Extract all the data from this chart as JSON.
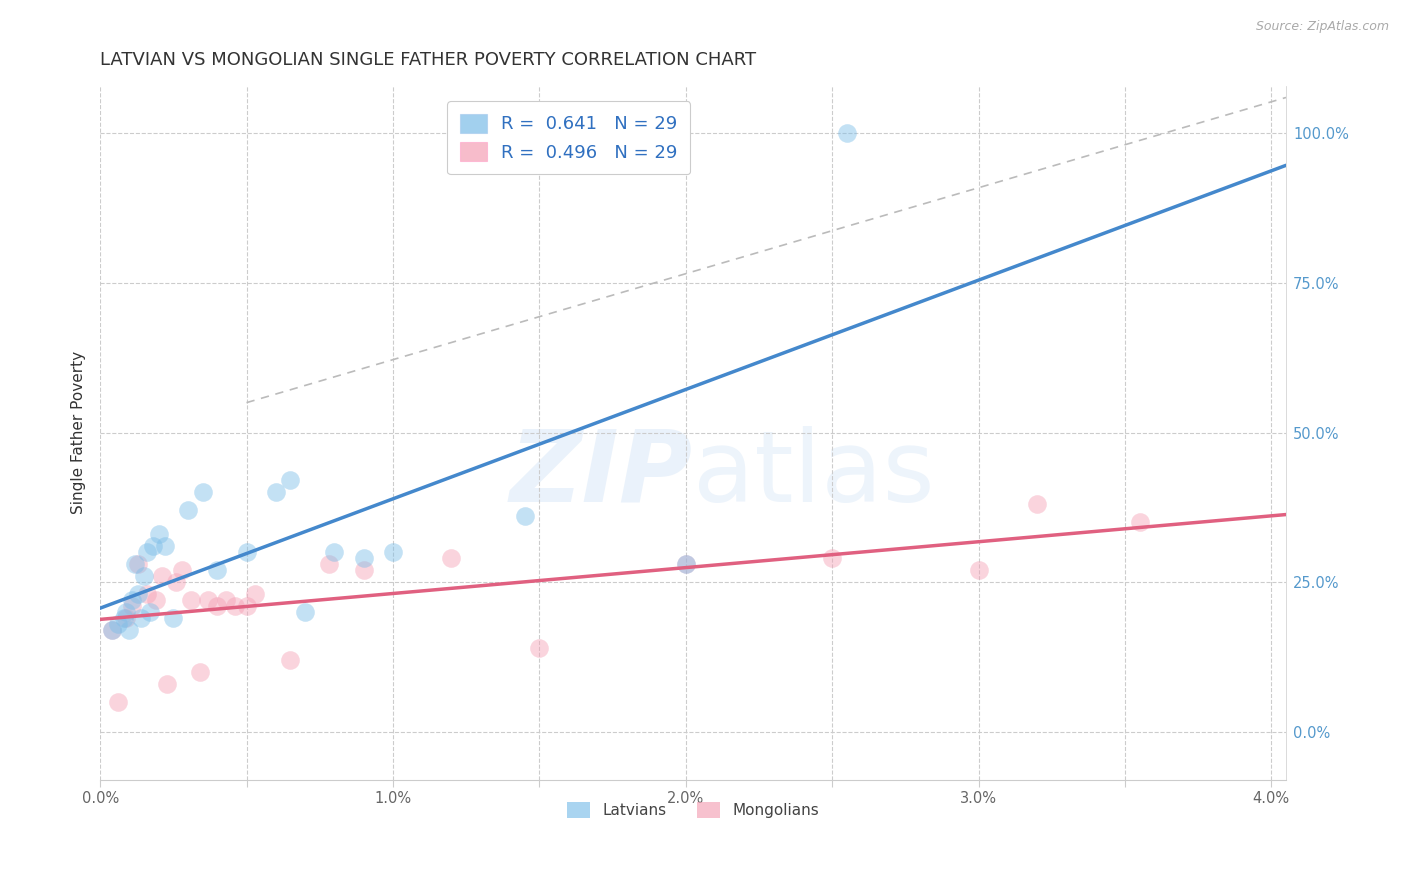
{
  "title": "LATVIAN VS MONGOLIAN SINGLE FATHER POVERTY CORRELATION CHART",
  "source": "Source: ZipAtlas.com",
  "ylabel": "Single Father Poverty",
  "latvian_color": "#7bbde8",
  "mongolian_color": "#f4a0b5",
  "latvian_trend_color": "#4488cc",
  "mongolian_trend_color": "#e06080",
  "latvian_R": "0.641",
  "mongolian_R": "0.496",
  "N": "29",
  "background_color": "#ffffff",
  "grid_color": "#cccccc",
  "latvians_x": [
    0.04,
    0.06,
    0.08,
    0.09,
    0.1,
    0.11,
    0.12,
    0.13,
    0.14,
    0.15,
    0.16,
    0.17,
    0.18,
    0.2,
    0.22,
    0.25,
    0.3,
    0.35,
    0.4,
    0.5,
    0.6,
    0.65,
    0.7,
    0.8,
    0.9,
    1.0,
    1.45,
    2.0,
    2.55
  ],
  "latvians_y": [
    0.17,
    0.18,
    0.19,
    0.2,
    0.17,
    0.22,
    0.28,
    0.23,
    0.19,
    0.26,
    0.3,
    0.2,
    0.31,
    0.33,
    0.31,
    0.19,
    0.37,
    0.4,
    0.27,
    0.3,
    0.4,
    0.42,
    0.2,
    0.3,
    0.29,
    0.3,
    0.36,
    0.28,
    1.0
  ],
  "mongolians_x": [
    0.04,
    0.06,
    0.09,
    0.11,
    0.13,
    0.16,
    0.19,
    0.21,
    0.23,
    0.26,
    0.28,
    0.31,
    0.34,
    0.37,
    0.4,
    0.43,
    0.46,
    0.5,
    0.53,
    0.65,
    0.78,
    0.9,
    1.2,
    1.5,
    2.0,
    2.5,
    3.0,
    3.2,
    3.55
  ],
  "mongolians_y": [
    0.17,
    0.05,
    0.19,
    0.21,
    0.28,
    0.23,
    0.22,
    0.26,
    0.08,
    0.25,
    0.27,
    0.22,
    0.1,
    0.22,
    0.21,
    0.22,
    0.21,
    0.21,
    0.23,
    0.12,
    0.28,
    0.27,
    0.29,
    0.14,
    0.28,
    0.29,
    0.27,
    0.38,
    0.35
  ],
  "xlim": [
    0.0,
    4.05
  ],
  "ylim": [
    -0.08,
    1.08
  ],
  "x_ticks": [
    0.0,
    0.5,
    1.0,
    1.5,
    2.0,
    2.5,
    3.0,
    3.5,
    4.0
  ],
  "x_tick_labels": [
    "0.0%",
    "",
    "1.0%",
    "",
    "2.0%",
    "",
    "3.0%",
    "",
    "4.0%"
  ],
  "y_ticks": [
    0.0,
    0.25,
    0.5,
    0.75,
    1.0
  ],
  "y_tick_labels": [
    "0.0%",
    "25.0%",
    "50.0%",
    "75.0%",
    "100.0%"
  ],
  "title_fontsize": 13,
  "label_fontsize": 11,
  "tick_fontsize": 10.5,
  "legend_fontsize": 13,
  "marker_size": 180,
  "marker_alpha": 0.45,
  "trend_linewidth": 2.5
}
